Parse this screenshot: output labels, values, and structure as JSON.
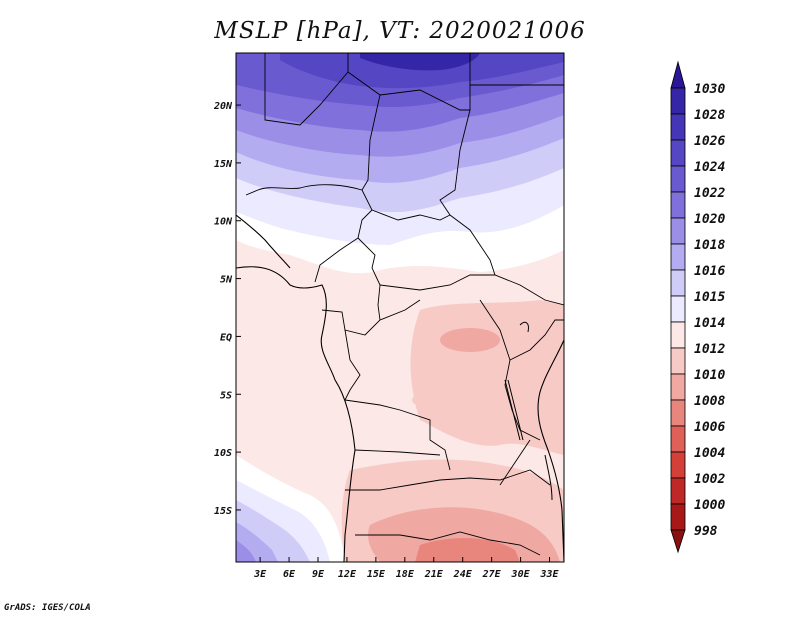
{
  "title": "MSLP [hPa], VT: 2020021006",
  "credit": "GrADS: IGES/COLA",
  "map": {
    "variable": "Mean sea level pressure",
    "units": "hPa",
    "valid_time": "2020021006",
    "lon_ticks": [
      "3E",
      "6E",
      "9E",
      "12E",
      "15E",
      "18E",
      "21E",
      "24E",
      "27E",
      "30E",
      "33E"
    ],
    "lat_ticks": [
      "20N",
      "15N",
      "10N",
      "5N",
      "EQ",
      "5S",
      "10S",
      "15S"
    ],
    "lon_range": [
      0.5,
      34.5
    ],
    "lat_range": [
      -19.5,
      24.5
    ]
  },
  "colorbar": {
    "levels": [
      "1030",
      "1028",
      "1026",
      "1024",
      "1022",
      "1020",
      "1018",
      "1016",
      "1015",
      "1014",
      "1012",
      "1010",
      "1008",
      "1006",
      "1004",
      "1002",
      "1000",
      "998"
    ],
    "colors": [
      "#2a1696",
      "#3526a8",
      "#4536b8",
      "#5546c4",
      "#6a5ad0",
      "#8070dc",
      "#9a8ee6",
      "#b4acf0",
      "#d0ccf8",
      "#eceafe",
      "#fce8e6",
      "#f8cac6",
      "#f0a8a2",
      "#e8867e",
      "#de6058",
      "#d24038",
      "#c02828",
      "#a81818",
      "#8a1010"
    ]
  }
}
